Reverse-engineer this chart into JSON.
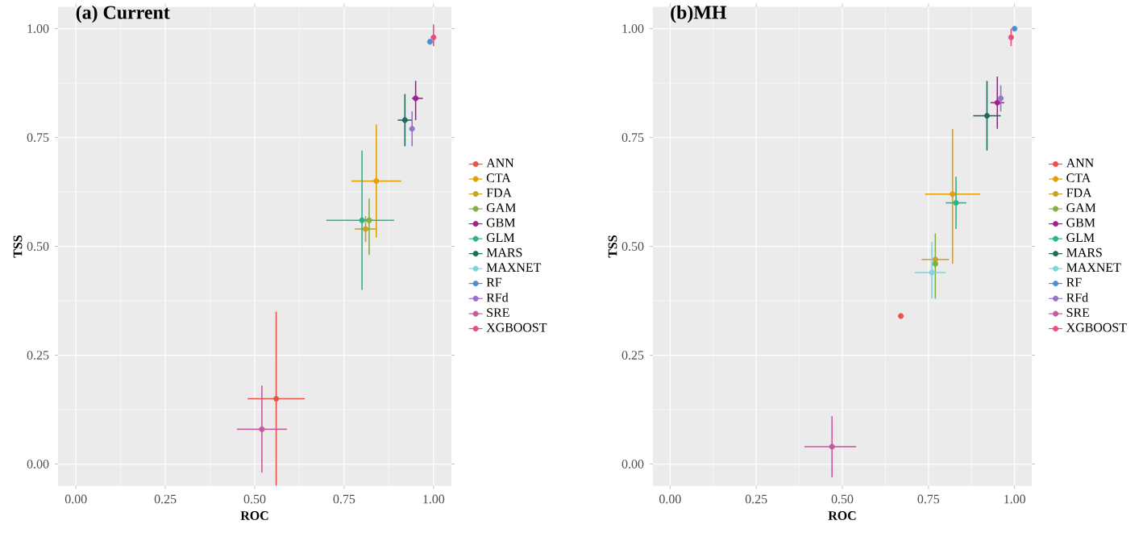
{
  "chart_data": [
    {
      "type": "scatter",
      "title": "(a) Current",
      "xlabel": "ROC",
      "ylabel": "TSS",
      "xlim": [
        -0.05,
        1.05
      ],
      "ylim": [
        -0.05,
        1.05
      ],
      "xticks": [
        {
          "value": 0,
          "label": "0.00"
        },
        {
          "value": 0.25,
          "label": "0.25"
        },
        {
          "value": 0.5,
          "label": "0.50"
        },
        {
          "value": 0.75,
          "label": "0.75"
        },
        {
          "value": 1,
          "label": "1.00"
        }
      ],
      "yticks": [
        {
          "value": 0,
          "label": "0.00"
        },
        {
          "value": 0.25,
          "label": "0.25"
        },
        {
          "value": 0.5,
          "label": "0.50"
        },
        {
          "value": 0.75,
          "label": "0.75"
        },
        {
          "value": 1,
          "label": "1.00"
        }
      ],
      "grid": true,
      "legend": "right",
      "marker": "circle",
      "series": [
        {
          "name": "ANN",
          "color": "#e8534a",
          "x": [
            0.56
          ],
          "values": [
            0.15
          ],
          "xerrors": [
            [
              0.48,
              0.64
            ]
          ],
          "errors": [
            [
              -0.05,
              0.35
            ]
          ]
        },
        {
          "name": "CTA",
          "color": "#e69f00",
          "x": [
            0.84
          ],
          "values": [
            0.65
          ],
          "xerrors": [
            [
              0.77,
              0.91
            ]
          ],
          "errors": [
            [
              0.52,
              0.78
            ]
          ]
        },
        {
          "name": "FDA",
          "color": "#c9a227",
          "x": [
            0.81
          ],
          "values": [
            0.54
          ],
          "xerrors": [
            [
              0.78,
              0.84
            ]
          ],
          "errors": [
            [
              0.51,
              0.57
            ]
          ]
        },
        {
          "name": "GAM",
          "color": "#7fb041",
          "x": [
            0.82
          ],
          "values": [
            0.56
          ],
          "xerrors": [
            [
              0.8,
              0.83
            ]
          ],
          "errors": [
            [
              0.48,
              0.61
            ]
          ]
        },
        {
          "name": "GBM",
          "color": "#a0208f",
          "x": [
            0.95
          ],
          "values": [
            0.84
          ],
          "xerrors": [
            [
              0.94,
              0.97
            ]
          ],
          "errors": [
            [
              0.79,
              0.88
            ]
          ]
        },
        {
          "name": "GLM",
          "color": "#2db38a",
          "x": [
            0.8
          ],
          "values": [
            0.56
          ],
          "xerrors": [
            [
              0.7,
              0.89
            ]
          ],
          "errors": [
            [
              0.4,
              0.72
            ]
          ]
        },
        {
          "name": "MARS",
          "color": "#1f6b5e",
          "x": [
            0.92
          ],
          "values": [
            0.79
          ],
          "xerrors": [
            [
              0.9,
              0.94
            ]
          ],
          "errors": [
            [
              0.73,
              0.85
            ]
          ]
        },
        {
          "name": "MAXNET",
          "color": "#7fd4e0",
          "x": [
            null
          ],
          "values": [
            null
          ]
        },
        {
          "name": "RF",
          "color": "#4a8fcf",
          "x": [
            0.99
          ],
          "values": [
            0.97
          ]
        },
        {
          "name": "RFd",
          "color": "#9b72c9",
          "x": [
            0.94
          ],
          "values": [
            0.77
          ],
          "errors": [
            [
              0.73,
              0.81
            ]
          ]
        },
        {
          "name": "SRE",
          "color": "#c55aa0",
          "x": [
            0.52
          ],
          "values": [
            0.08
          ],
          "xerrors": [
            [
              0.45,
              0.59
            ]
          ],
          "errors": [
            [
              -0.02,
              0.18
            ]
          ]
        },
        {
          "name": "XGBOOST",
          "color": "#e8507a",
          "x": [
            1.0
          ],
          "values": [
            0.98
          ],
          "errors": [
            [
              0.96,
              1.01
            ]
          ]
        }
      ]
    },
    {
      "type": "scatter",
      "title": "(b)MH",
      "xlabel": "ROC",
      "ylabel": "TSS",
      "xlim": [
        -0.05,
        1.05
      ],
      "ylim": [
        -0.05,
        1.05
      ],
      "xticks": [
        {
          "value": 0,
          "label": "0.00"
        },
        {
          "value": 0.25,
          "label": "0.25"
        },
        {
          "value": 0.5,
          "label": "0.50"
        },
        {
          "value": 0.75,
          "label": "0.75"
        },
        {
          "value": 1,
          "label": "1.00"
        }
      ],
      "yticks": [
        {
          "value": 0,
          "label": "0.00"
        },
        {
          "value": 0.25,
          "label": "0.25"
        },
        {
          "value": 0.5,
          "label": "0.50"
        },
        {
          "value": 0.75,
          "label": "0.75"
        },
        {
          "value": 1,
          "label": "1.00"
        }
      ],
      "grid": true,
      "legend": "right",
      "marker": "circle",
      "series": [
        {
          "name": "ANN",
          "color": "#e8534a",
          "x": [
            0.67
          ],
          "values": [
            0.34
          ]
        },
        {
          "name": "CTA",
          "color": "#e69f00",
          "x": [
            0.82
          ],
          "values": [
            0.62
          ],
          "xerrors": [
            [
              0.74,
              0.9
            ]
          ],
          "errors": [
            [
              0.46,
              0.77
            ]
          ]
        },
        {
          "name": "FDA",
          "color": "#c9a227",
          "x": [
            0.77
          ],
          "values": [
            0.47
          ],
          "xerrors": [
            [
              0.73,
              0.81
            ]
          ]
        },
        {
          "name": "GAM",
          "color": "#7fb041",
          "x": [
            0.77
          ],
          "values": [
            0.46
          ],
          "errors": [
            [
              0.38,
              0.53
            ]
          ]
        },
        {
          "name": "GBM",
          "color": "#a0208f",
          "x": [
            0.95
          ],
          "values": [
            0.83
          ],
          "xerrors": [
            [
              0.93,
              0.97
            ]
          ],
          "errors": [
            [
              0.77,
              0.89
            ]
          ]
        },
        {
          "name": "GLM",
          "color": "#2db38a",
          "x": [
            0.83
          ],
          "values": [
            0.6
          ],
          "xerrors": [
            [
              0.8,
              0.86
            ]
          ],
          "errors": [
            [
              0.54,
              0.66
            ]
          ]
        },
        {
          "name": "MARS",
          "color": "#1f6b5e",
          "x": [
            0.92
          ],
          "values": [
            0.8
          ],
          "xerrors": [
            [
              0.88,
              0.96
            ]
          ],
          "errors": [
            [
              0.72,
              0.88
            ]
          ]
        },
        {
          "name": "MAXNET",
          "color": "#7fd4e0",
          "x": [
            0.76
          ],
          "values": [
            0.44
          ],
          "xerrors": [
            [
              0.71,
              0.8
            ]
          ],
          "errors": [
            [
              0.38,
              0.51
            ]
          ]
        },
        {
          "name": "RF",
          "color": "#4a8fcf",
          "x": [
            1.0
          ],
          "values": [
            1.0
          ]
        },
        {
          "name": "RFd",
          "color": "#9b72c9",
          "x": [
            0.96
          ],
          "values": [
            0.84
          ],
          "errors": [
            [
              0.81,
              0.87
            ]
          ]
        },
        {
          "name": "SRE",
          "color": "#c55aa0",
          "x": [
            0.47
          ],
          "values": [
            0.04
          ],
          "xerrors": [
            [
              0.39,
              0.54
            ]
          ],
          "errors": [
            [
              -0.03,
              0.11
            ]
          ]
        },
        {
          "name": "XGBOOST",
          "color": "#e8507a",
          "x": [
            0.99
          ],
          "values": [
            0.98
          ],
          "errors": [
            [
              0.96,
              1.0
            ]
          ]
        }
      ]
    }
  ]
}
